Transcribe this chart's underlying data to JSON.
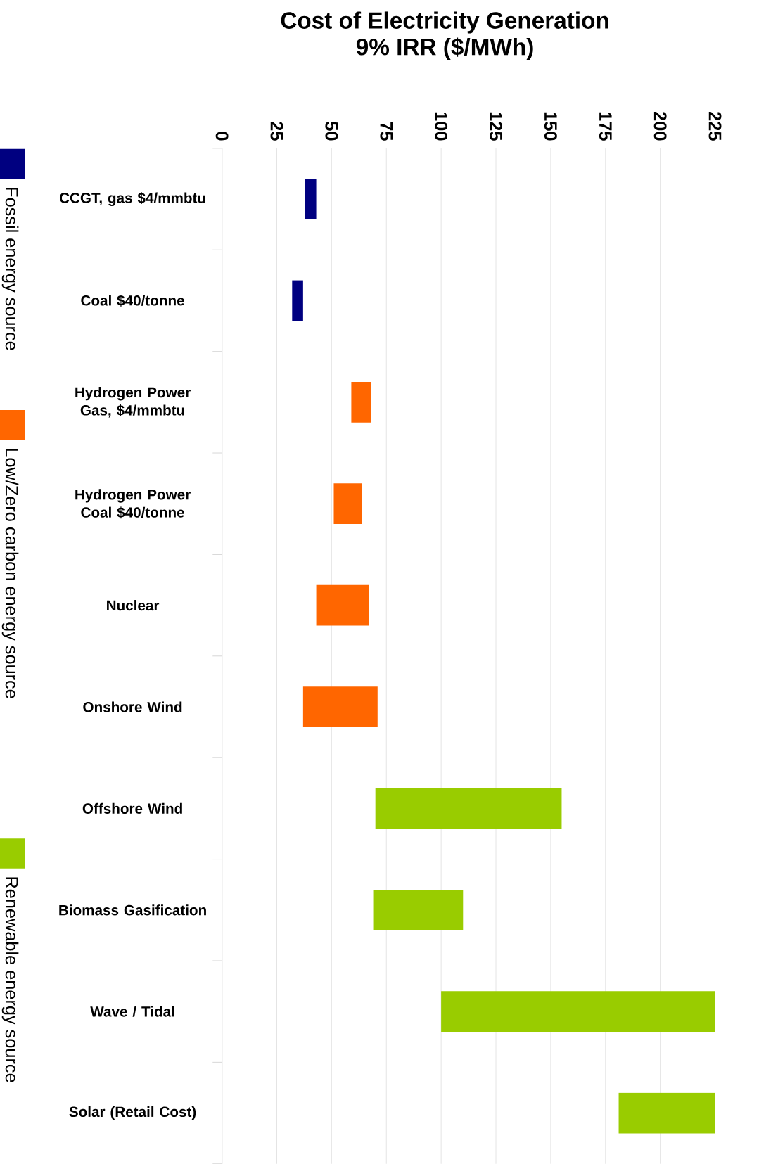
{
  "chart_data": {
    "type": "bar",
    "orientation": "horizontal",
    "title": "Cost of Electricity Generation",
    "subtitle": "9% IRR ($/MWh)",
    "categories": [
      "CCGT, gas $4/mmbtu",
      "Coal $40/tonne",
      "Hydrogen Power Gas, $4/mmbtu",
      "Hydrogen Power Coal $40/tonne",
      "Nuclear",
      "Onshore Wind",
      "Offshore Wind",
      "Biomass Gasification",
      "Wave / Tidal",
      "Solar (Retail Cost)"
    ],
    "series": [
      {
        "name": "Fossil energy source",
        "color": "#000080",
        "base": [
          38,
          32,
          null,
          null,
          null,
          null,
          null,
          null,
          null,
          null
        ],
        "values": [
          5,
          5,
          null,
          null,
          null,
          null,
          null,
          null,
          null,
          null
        ]
      },
      {
        "name": "Low/Zero carbon energy source",
        "color": "#ff6600",
        "base": [
          null,
          null,
          59,
          51,
          43,
          37,
          null,
          null,
          null,
          null
        ],
        "values": [
          null,
          null,
          9,
          13,
          24,
          34,
          null,
          null,
          null,
          null
        ]
      },
      {
        "name": "Renewable energy source",
        "color": "#99cc00",
        "base": [
          null,
          null,
          null,
          null,
          null,
          null,
          70,
          69,
          100,
          181
        ],
        "values": [
          null,
          null,
          null,
          null,
          null,
          null,
          85,
          41,
          125,
          44
        ]
      }
    ],
    "xlim": [
      0,
      225
    ],
    "xticks": [
      0,
      25,
      50,
      75,
      100,
      125,
      150,
      175,
      200,
      225
    ],
    "grid": "x",
    "legend": "left"
  }
}
